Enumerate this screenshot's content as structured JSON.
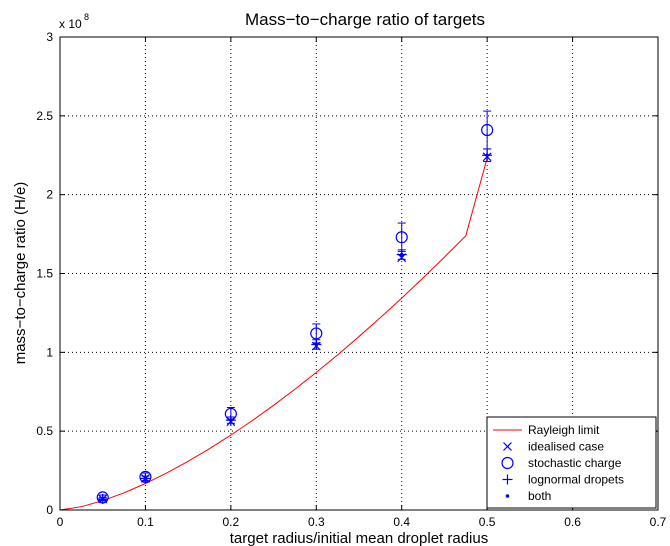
{
  "chart_data": {
    "type": "scatter",
    "title": "Mass−to−charge ratio of targets",
    "xlabel": "target radius/initial mean droplet radius",
    "ylabel": "mass−to−charge ratio (H/e)",
    "y_exponent": "x 10",
    "y_exponent_power": "8",
    "xlim": [
      0,
      0.7
    ],
    "ylim": [
      0,
      3
    ],
    "grid": true,
    "legend_position": "bottom-right",
    "x_ticks": [
      "0",
      "0.1",
      "0.2",
      "0.3",
      "0.4",
      "0.5",
      "0.6",
      "0.7"
    ],
    "y_ticks": [
      "0",
      "0.5",
      "1",
      "1.5",
      "2",
      "2.5",
      "3"
    ],
    "colors": {
      "rayleigh": "#ff0000",
      "markers": "#0000ff",
      "axes": "#000000",
      "grid": "#000000"
    },
    "series": [
      {
        "name": "Rayleigh limit",
        "kind": "line",
        "marker": "none",
        "x": [
          0.0,
          0.025,
          0.05,
          0.075,
          0.1,
          0.125,
          0.15,
          0.175,
          0.2,
          0.225,
          0.25,
          0.275,
          0.3,
          0.325,
          0.35,
          0.375,
          0.4,
          0.425,
          0.45,
          0.475,
          0.5
        ],
        "y": [
          0.0,
          0.021,
          0.059,
          0.109,
          0.168,
          0.235,
          0.309,
          0.389,
          0.475,
          0.567,
          0.664,
          0.766,
          0.873,
          0.984,
          1.1,
          1.22,
          1.344,
          1.472,
          1.604,
          1.739,
          2.232
        ]
      },
      {
        "name": "idealised case",
        "kind": "marker",
        "marker": "x",
        "x": [
          0.05,
          0.1,
          0.2,
          0.3,
          0.4,
          0.5
        ],
        "y": [
          0.07,
          0.2,
          0.56,
          1.04,
          1.6,
          2.24
        ]
      },
      {
        "name": "stochastic charge",
        "kind": "marker",
        "marker": "circle",
        "x": [
          0.05,
          0.1,
          0.2,
          0.3,
          0.4,
          0.5
        ],
        "y": [
          0.08,
          0.21,
          0.61,
          1.12,
          1.73,
          2.41
        ],
        "err": [
          0.015,
          0.025,
          0.04,
          0.06,
          0.09,
          0.12
        ]
      },
      {
        "name": "lognormal dropets",
        "kind": "marker",
        "marker": "plus",
        "x": [
          0.05,
          0.1,
          0.2,
          0.3,
          0.4,
          0.5
        ],
        "y": [
          0.07,
          0.2,
          0.57,
          1.05,
          1.62,
          2.25
        ],
        "err": [
          0.01,
          0.015,
          0.02,
          0.03,
          0.03,
          0.04
        ]
      },
      {
        "name": "both",
        "kind": "marker",
        "marker": "dot",
        "x": [
          0.05,
          0.1,
          0.2,
          0.3,
          0.4,
          0.5
        ],
        "y": [
          0.07,
          0.2,
          0.57,
          1.05,
          1.62,
          2.25
        ]
      }
    ]
  }
}
